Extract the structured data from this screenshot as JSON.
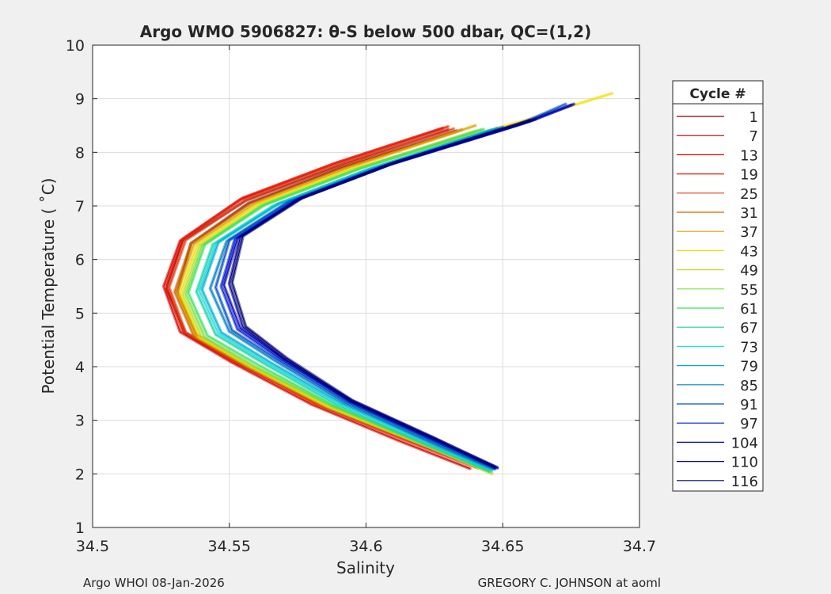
{
  "chart_data": {
    "type": "line",
    "title": "Argo WMO 5906827: θ-S below 500 dbar,  QC=(1,2)",
    "xlabel": "Salinity",
    "ylabel": "Potential Temperature ( ˚C)",
    "xlim": [
      34.5,
      34.7
    ],
    "ylim": [
      1,
      10
    ],
    "xticks": [
      34.5,
      34.55,
      34.6,
      34.65,
      34.7
    ],
    "xtick_labels": [
      "34.5",
      "34.55",
      "34.6",
      "34.65",
      "34.7"
    ],
    "yticks": [
      1,
      2,
      3,
      4,
      5,
      6,
      7,
      8,
      9,
      10
    ],
    "ytick_labels": [
      "1",
      "2",
      "3",
      "4",
      "5",
      "6",
      "7",
      "8",
      "9",
      "10"
    ],
    "grid": true,
    "legend_title": "Cycle #",
    "legend_position": "right-outside",
    "series": [
      {
        "name": "1",
        "color": "#800000",
        "points": [
          [
            34.647,
            2.1
          ],
          [
            34.62,
            2.6
          ],
          [
            34.585,
            3.3
          ],
          [
            34.556,
            4.05
          ],
          [
            34.538,
            4.6
          ],
          [
            34.531,
            5.4
          ],
          [
            34.536,
            6.3
          ],
          [
            34.557,
            7.05
          ],
          [
            34.59,
            7.7
          ],
          [
            34.633,
            8.4
          ]
        ]
      },
      {
        "name": "7",
        "color": "#a50000",
        "points": [
          [
            34.642,
            2.12
          ],
          [
            34.617,
            2.62
          ],
          [
            34.583,
            3.32
          ],
          [
            34.553,
            4.07
          ],
          [
            34.534,
            4.62
          ],
          [
            34.527,
            5.45
          ],
          [
            34.533,
            6.35
          ],
          [
            34.556,
            7.1
          ],
          [
            34.59,
            7.75
          ],
          [
            34.63,
            8.42
          ]
        ]
      },
      {
        "name": "13",
        "color": "#d40000",
        "points": [
          [
            34.638,
            2.1
          ],
          [
            34.612,
            2.62
          ],
          [
            34.58,
            3.3
          ],
          [
            34.551,
            4.08
          ],
          [
            34.532,
            4.65
          ],
          [
            34.526,
            5.5
          ],
          [
            34.532,
            6.35
          ],
          [
            34.554,
            7.12
          ],
          [
            34.588,
            7.78
          ],
          [
            34.628,
            8.45
          ]
        ]
      },
      {
        "name": "19",
        "color": "#e61a00",
        "points": [
          [
            34.64,
            2.13
          ],
          [
            34.614,
            2.64
          ],
          [
            34.581,
            3.32
          ],
          [
            34.552,
            4.1
          ],
          [
            34.533,
            4.66
          ],
          [
            34.527,
            5.52
          ],
          [
            34.533,
            6.38
          ],
          [
            34.555,
            7.15
          ],
          [
            34.589,
            7.8
          ],
          [
            34.63,
            8.48
          ]
        ]
      },
      {
        "name": "25",
        "color": "#e0401a",
        "points": [
          [
            34.641,
            2.11
          ],
          [
            34.615,
            2.63
          ],
          [
            34.582,
            3.31
          ],
          [
            34.553,
            4.09
          ],
          [
            34.534,
            4.64
          ],
          [
            34.528,
            5.48
          ],
          [
            34.534,
            6.36
          ],
          [
            34.556,
            7.11
          ],
          [
            34.59,
            7.77
          ],
          [
            34.632,
            8.44
          ]
        ]
      },
      {
        "name": "31",
        "color": "#cc6600",
        "points": [
          [
            34.643,
            2.1
          ],
          [
            34.618,
            2.6
          ],
          [
            34.584,
            3.28
          ],
          [
            34.556,
            4.02
          ],
          [
            34.537,
            4.58
          ],
          [
            34.53,
            5.4
          ],
          [
            34.536,
            6.3
          ],
          [
            34.558,
            7.05
          ],
          [
            34.592,
            7.72
          ],
          [
            34.635,
            8.42
          ]
        ]
      },
      {
        "name": "37",
        "color": "#e0a000",
        "points": [
          [
            34.644,
            2.08
          ],
          [
            34.619,
            2.58
          ],
          [
            34.585,
            3.27
          ],
          [
            34.557,
            4.0
          ],
          [
            34.538,
            4.56
          ],
          [
            34.531,
            5.38
          ],
          [
            34.537,
            6.28
          ],
          [
            34.559,
            7.03
          ],
          [
            34.593,
            7.7
          ],
          [
            34.64,
            8.5
          ]
        ]
      },
      {
        "name": "43",
        "color": "#f0e000",
        "points": [
          [
            34.645,
            2.05
          ],
          [
            34.62,
            2.57
          ],
          [
            34.586,
            3.26
          ],
          [
            34.558,
            4.0
          ],
          [
            34.539,
            4.55
          ],
          [
            34.532,
            5.36
          ],
          [
            34.538,
            6.26
          ],
          [
            34.56,
            7.02
          ],
          [
            34.595,
            7.7
          ],
          [
            34.655,
            8.55
          ],
          [
            34.69,
            9.1
          ]
        ]
      },
      {
        "name": "49",
        "color": "#c0e030",
        "points": [
          [
            34.646,
            2.0
          ],
          [
            34.621,
            2.55
          ],
          [
            34.587,
            3.25
          ],
          [
            34.559,
            3.98
          ],
          [
            34.54,
            4.54
          ],
          [
            34.533,
            5.35
          ],
          [
            34.539,
            6.25
          ],
          [
            34.561,
            7.0
          ],
          [
            34.596,
            7.68
          ],
          [
            34.64,
            8.4
          ]
        ]
      },
      {
        "name": "55",
        "color": "#80e040",
        "points": [
          [
            34.646,
            2.03
          ],
          [
            34.621,
            2.56
          ],
          [
            34.588,
            3.26
          ],
          [
            34.56,
            3.99
          ],
          [
            34.541,
            4.55
          ],
          [
            34.534,
            5.36
          ],
          [
            34.54,
            6.26
          ],
          [
            34.562,
            7.01
          ],
          [
            34.597,
            7.69
          ],
          [
            34.642,
            8.42
          ]
        ]
      },
      {
        "name": "61",
        "color": "#40e060",
        "points": [
          [
            34.645,
            2.05
          ],
          [
            34.62,
            2.58
          ],
          [
            34.588,
            3.28
          ],
          [
            34.561,
            4.02
          ],
          [
            34.542,
            4.58
          ],
          [
            34.535,
            5.38
          ],
          [
            34.541,
            6.28
          ],
          [
            34.563,
            7.02
          ],
          [
            34.598,
            7.7
          ],
          [
            34.643,
            8.43
          ]
        ]
      },
      {
        "name": "67",
        "color": "#20d0a0",
        "points": [
          [
            34.645,
            2.06
          ],
          [
            34.62,
            2.6
          ],
          [
            34.589,
            3.3
          ],
          [
            34.563,
            4.05
          ],
          [
            34.545,
            4.6
          ],
          [
            34.538,
            5.4
          ],
          [
            34.544,
            6.28
          ],
          [
            34.566,
            7.0
          ],
          [
            34.6,
            7.66
          ],
          [
            34.645,
            8.4
          ]
        ]
      },
      {
        "name": "73",
        "color": "#20e0e0",
        "points": [
          [
            34.646,
            2.07
          ],
          [
            34.621,
            2.61
          ],
          [
            34.59,
            3.31
          ],
          [
            34.564,
            4.06
          ],
          [
            34.546,
            4.62
          ],
          [
            34.539,
            5.42
          ],
          [
            34.545,
            6.3
          ],
          [
            34.567,
            7.02
          ],
          [
            34.601,
            7.68
          ],
          [
            34.646,
            8.42
          ]
        ]
      },
      {
        "name": "79",
        "color": "#00b0d0",
        "points": [
          [
            34.646,
            2.08
          ],
          [
            34.622,
            2.62
          ],
          [
            34.591,
            3.32
          ],
          [
            34.565,
            4.08
          ],
          [
            34.547,
            4.64
          ],
          [
            34.54,
            5.44
          ],
          [
            34.546,
            6.32
          ],
          [
            34.568,
            7.04
          ],
          [
            34.602,
            7.7
          ],
          [
            34.648,
            8.45
          ]
        ]
      },
      {
        "name": "85",
        "color": "#0080c0",
        "points": [
          [
            34.647,
            2.09
          ],
          [
            34.622,
            2.63
          ],
          [
            34.592,
            3.33
          ],
          [
            34.567,
            4.1
          ],
          [
            34.55,
            4.66
          ],
          [
            34.543,
            5.46
          ],
          [
            34.549,
            6.34
          ],
          [
            34.571,
            7.06
          ],
          [
            34.605,
            7.72
          ],
          [
            34.65,
            8.47
          ]
        ]
      },
      {
        "name": "91",
        "color": "#0050c8",
        "points": [
          [
            34.647,
            2.1
          ],
          [
            34.623,
            2.64
          ],
          [
            34.593,
            3.34
          ],
          [
            34.568,
            4.12
          ],
          [
            34.551,
            4.68
          ],
          [
            34.545,
            5.48
          ],
          [
            34.55,
            6.36
          ],
          [
            34.572,
            7.08
          ],
          [
            34.606,
            7.74
          ],
          [
            34.655,
            8.5
          ],
          [
            34.673,
            8.9
          ]
        ]
      },
      {
        "name": "97",
        "color": "#0020d0",
        "points": [
          [
            34.648,
            2.11
          ],
          [
            34.624,
            2.65
          ],
          [
            34.594,
            3.35
          ],
          [
            34.569,
            4.13
          ],
          [
            34.553,
            4.7
          ],
          [
            34.547,
            5.5
          ],
          [
            34.552,
            6.38
          ],
          [
            34.574,
            7.1
          ],
          [
            34.608,
            7.76
          ],
          [
            34.658,
            8.55
          ],
          [
            34.675,
            8.88
          ]
        ]
      },
      {
        "name": "104",
        "color": "#0000b8",
        "points": [
          [
            34.648,
            2.12
          ],
          [
            34.625,
            2.66
          ],
          [
            34.595,
            3.36
          ],
          [
            34.57,
            4.14
          ],
          [
            34.554,
            4.72
          ],
          [
            34.548,
            5.52
          ],
          [
            34.553,
            6.4
          ],
          [
            34.575,
            7.12
          ],
          [
            34.609,
            7.78
          ],
          [
            34.66,
            8.58
          ],
          [
            34.676,
            8.9
          ]
        ]
      },
      {
        "name": "110",
        "color": "#000090",
        "points": [
          [
            34.647,
            2.12
          ],
          [
            34.624,
            2.66
          ],
          [
            34.594,
            3.36
          ],
          [
            34.57,
            4.15
          ],
          [
            34.555,
            4.74
          ],
          [
            34.55,
            5.55
          ],
          [
            34.554,
            6.42
          ],
          [
            34.576,
            7.14
          ],
          [
            34.61,
            7.8
          ],
          [
            34.66,
            8.6
          ]
        ]
      },
      {
        "name": "116",
        "color": "#000070",
        "points": [
          [
            34.647,
            2.13
          ],
          [
            34.625,
            2.67
          ],
          [
            34.595,
            3.37
          ],
          [
            34.571,
            4.16
          ],
          [
            34.556,
            4.75
          ],
          [
            34.551,
            5.57
          ],
          [
            34.555,
            6.44
          ],
          [
            34.577,
            7.16
          ],
          [
            34.611,
            7.82
          ],
          [
            34.662,
            8.62
          ]
        ]
      }
    ]
  },
  "footer": {
    "left": "Argo WHOI 08-Jan-2026",
    "right": "GREGORY C. JOHNSON at aoml"
  }
}
